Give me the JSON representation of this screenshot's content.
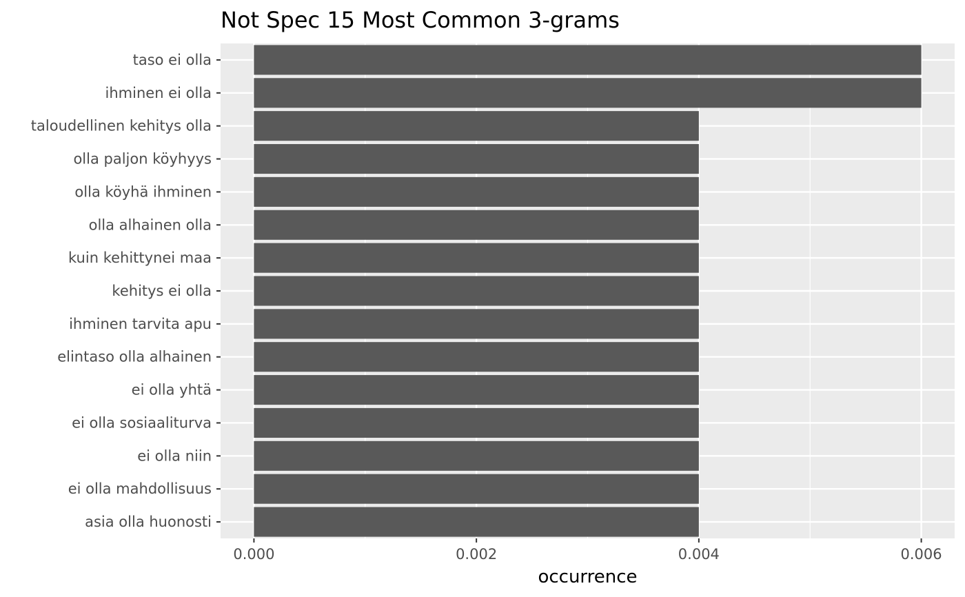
{
  "chart_data": {
    "type": "bar",
    "orientation": "horizontal",
    "title": "Not Spec 15 Most Common 3-grams",
    "xlabel": "occurrence",
    "ylabel": "",
    "categories": [
      "taso ei olla",
      "ihminen ei olla",
      "taloudellinen kehitys olla",
      "olla paljon köyhyys",
      "olla köyhä ihminen",
      "olla alhainen olla",
      "kuin kehittynei maa",
      "kehitys ei olla",
      "ihminen tarvita apu",
      "elintaso olla alhainen",
      "ei olla yhtä",
      "ei olla sosiaaliturva",
      "ei olla niin",
      "ei olla mahdollisuus",
      "asia olla huonosti"
    ],
    "values": [
      0.006,
      0.006,
      0.004,
      0.004,
      0.004,
      0.004,
      0.004,
      0.004,
      0.004,
      0.004,
      0.004,
      0.004,
      0.004,
      0.004,
      0.004
    ],
    "xticks": [
      "0.000",
      "0.002",
      "0.004",
      "0.006"
    ],
    "xtick_values": [
      0,
      0.002,
      0.004,
      0.006
    ],
    "xlim": [
      -0.0003,
      0.0063
    ],
    "grid": true,
    "legend": "none",
    "colors": {
      "bar": "#595959",
      "panel": "#ebebeb",
      "grid_major": "#ffffff",
      "tick_text": "#4d4d4d",
      "tick_mark": "#333333"
    }
  }
}
